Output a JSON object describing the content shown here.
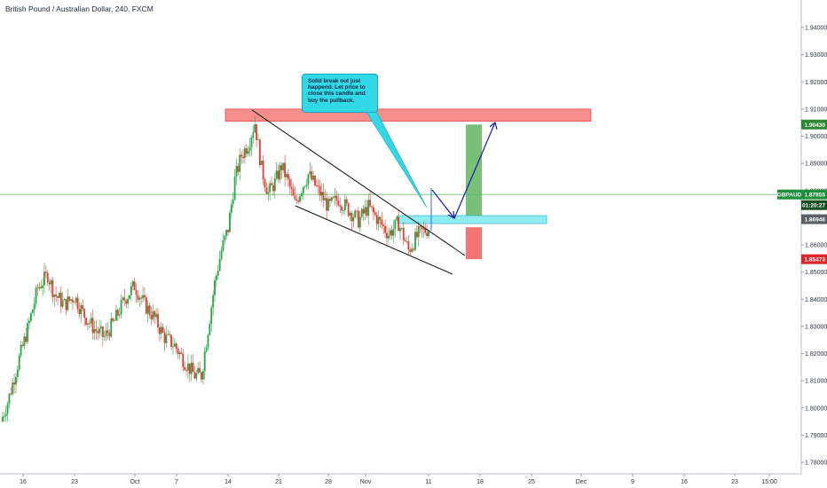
{
  "header": {
    "title": "British Pound / Australian Dollar, 240, FXCM"
  },
  "annotation": {
    "note_text": "Solid break out just happend. Let price to close this candle and buy the pullback."
  },
  "price_tags": {
    "symbol_label": "GBPAUD",
    "current_price": "1.87855",
    "countdown": "01:20:27",
    "gray_level": "1.86946",
    "green_level": "1.90430",
    "red_level": "1.85473"
  },
  "colors": {
    "resistance_zone": "#f47a7a",
    "entry_zone": "#7ee8f0",
    "target_bar": "#4aad4a",
    "stop_bar": "#f25a5a",
    "bull_candle": "#26a641",
    "bear_candle": "#e63a35",
    "projection_arrow": "#1a1ab0",
    "note_bg": "#31d8e6"
  },
  "chart_data": {
    "type": "candlestick",
    "symbol": "GBPAUD",
    "timeframe": "240",
    "source": "FXCM",
    "ylim": [
      1.775,
      1.955
    ],
    "y_ticks": [
      "1.94000",
      "1.93000",
      "1.92000",
      "1.91000",
      "1.90000",
      "1.89000",
      "1.88000",
      "1.87000",
      "1.86000",
      "1.85000",
      "1.84000",
      "1.83000",
      "1.82000",
      "1.81000",
      "1.80000",
      "1.79000",
      "1.78000"
    ],
    "x_ticks": [
      "16",
      "23",
      "Oct",
      "7",
      "14",
      "21",
      "28",
      "Nov",
      "11",
      "18",
      "25",
      "Dec",
      "9",
      "16",
      "23",
      "15:00"
    ],
    "price_path": [
      [
        0,
        1.795
      ],
      [
        4,
        1.802
      ],
      [
        10,
        1.816
      ],
      [
        16,
        1.829
      ],
      [
        22,
        1.844
      ],
      [
        28,
        1.849
      ],
      [
        32,
        1.842
      ],
      [
        38,
        1.838
      ],
      [
        44,
        1.841
      ],
      [
        50,
        1.834
      ],
      [
        56,
        1.829
      ],
      [
        62,
        1.826
      ],
      [
        68,
        1.832
      ],
      [
        74,
        1.84
      ],
      [
        80,
        1.845
      ],
      [
        86,
        1.838
      ],
      [
        92,
        1.833
      ],
      [
        98,
        1.826
      ],
      [
        104,
        1.823
      ],
      [
        110,
        1.817
      ],
      [
        116,
        1.812
      ],
      [
        120,
        1.812
      ],
      [
        124,
        1.829
      ],
      [
        128,
        1.846
      ],
      [
        132,
        1.858
      ],
      [
        136,
        1.866
      ],
      [
        140,
        1.884
      ],
      [
        144,
        1.893
      ],
      [
        148,
        1.897
      ],
      [
        152,
        1.905
      ],
      [
        156,
        1.888
      ],
      [
        160,
        1.879
      ],
      [
        164,
        1.883
      ],
      [
        168,
        1.889
      ],
      [
        172,
        1.883
      ],
      [
        176,
        1.875
      ],
      [
        180,
        1.881
      ],
      [
        184,
        1.886
      ],
      [
        190,
        1.88
      ],
      [
        196,
        1.874
      ],
      [
        202,
        1.877
      ],
      [
        208,
        1.873
      ],
      [
        214,
        1.869
      ],
      [
        220,
        1.874
      ],
      [
        226,
        1.869
      ],
      [
        232,
        1.864
      ],
      [
        238,
        1.868
      ],
      [
        244,
        1.858
      ],
      [
        250,
        1.864
      ],
      [
        256,
        1.866
      ]
    ],
    "levels": {
      "resistance_zone": [
        1.9055,
        1.91
      ],
      "entry_zone": [
        1.8686,
        1.8698
      ],
      "current_price": 1.87855,
      "target": 1.9043,
      "stop": 1.85473
    }
  }
}
